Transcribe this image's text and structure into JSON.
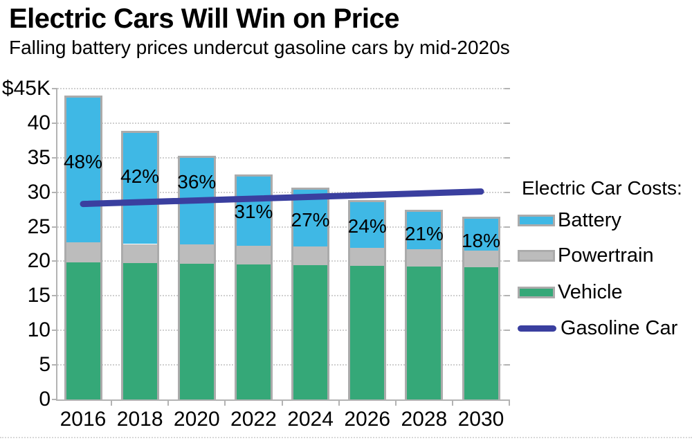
{
  "header": {
    "title": "Electric Cars Will Win on Price",
    "subtitle": "Falling battery prices undercut gasoline cars by mid-2020s"
  },
  "chart_data": {
    "type": "bar",
    "subtype": "stacked-bar-with-line",
    "title": "Electric Cars Will Win on Price",
    "subtitle": "Falling battery prices undercut gasoline cars by mid-2020s",
    "unit": "$K (thousand USD)",
    "categories": [
      "2016",
      "2018",
      "2020",
      "2022",
      "2024",
      "2026",
      "2028",
      "2030"
    ],
    "series": [
      {
        "name": "Vehicle",
        "color": "#35a878",
        "values": [
          19.8,
          19.7,
          19.6,
          19.5,
          19.4,
          19.3,
          19.2,
          19.1
        ]
      },
      {
        "name": "Powertrain",
        "color": "#bcbcbc",
        "values": [
          3.0,
          2.8,
          2.8,
          2.7,
          2.7,
          2.6,
          2.5,
          2.4
        ]
      },
      {
        "name": "Battery",
        "color": "#3fb8e5",
        "values": [
          20.9,
          16.1,
          12.6,
          10.1,
          8.3,
          6.7,
          5.5,
          4.7
        ]
      }
    ],
    "totals": [
      43.7,
      38.6,
      35.0,
      32.3,
      30.4,
      28.6,
      27.2,
      26.2
    ],
    "battery_share_labels": [
      "48%",
      "42%",
      "36%",
      "31%",
      "27%",
      "24%",
      "21%",
      "18%"
    ],
    "line": {
      "name": "Gasoline Car",
      "color": "#3a3f9f",
      "x": [
        2016,
        2030
      ],
      "values": [
        28.3,
        30.1
      ]
    },
    "ylim": [
      0,
      45
    ],
    "y_ticks": [
      {
        "v": 0,
        "label": "0"
      },
      {
        "v": 5,
        "label": "5"
      },
      {
        "v": 10,
        "label": "10"
      },
      {
        "v": 15,
        "label": "15"
      },
      {
        "v": 20,
        "label": "20"
      },
      {
        "v": 25,
        "label": "25"
      },
      {
        "v": 30,
        "label": "30"
      },
      {
        "v": 35,
        "label": "35"
      },
      {
        "v": 40,
        "label": "40"
      },
      {
        "v": 45,
        "label": "$45K"
      }
    ],
    "grid": "dotted horizontal gridlines every 5",
    "legend": {
      "position": "right",
      "heading": "Electric Car Costs:",
      "items": [
        "Battery",
        "Powertrain",
        "Vehicle",
        "Gasoline Car"
      ]
    }
  }
}
